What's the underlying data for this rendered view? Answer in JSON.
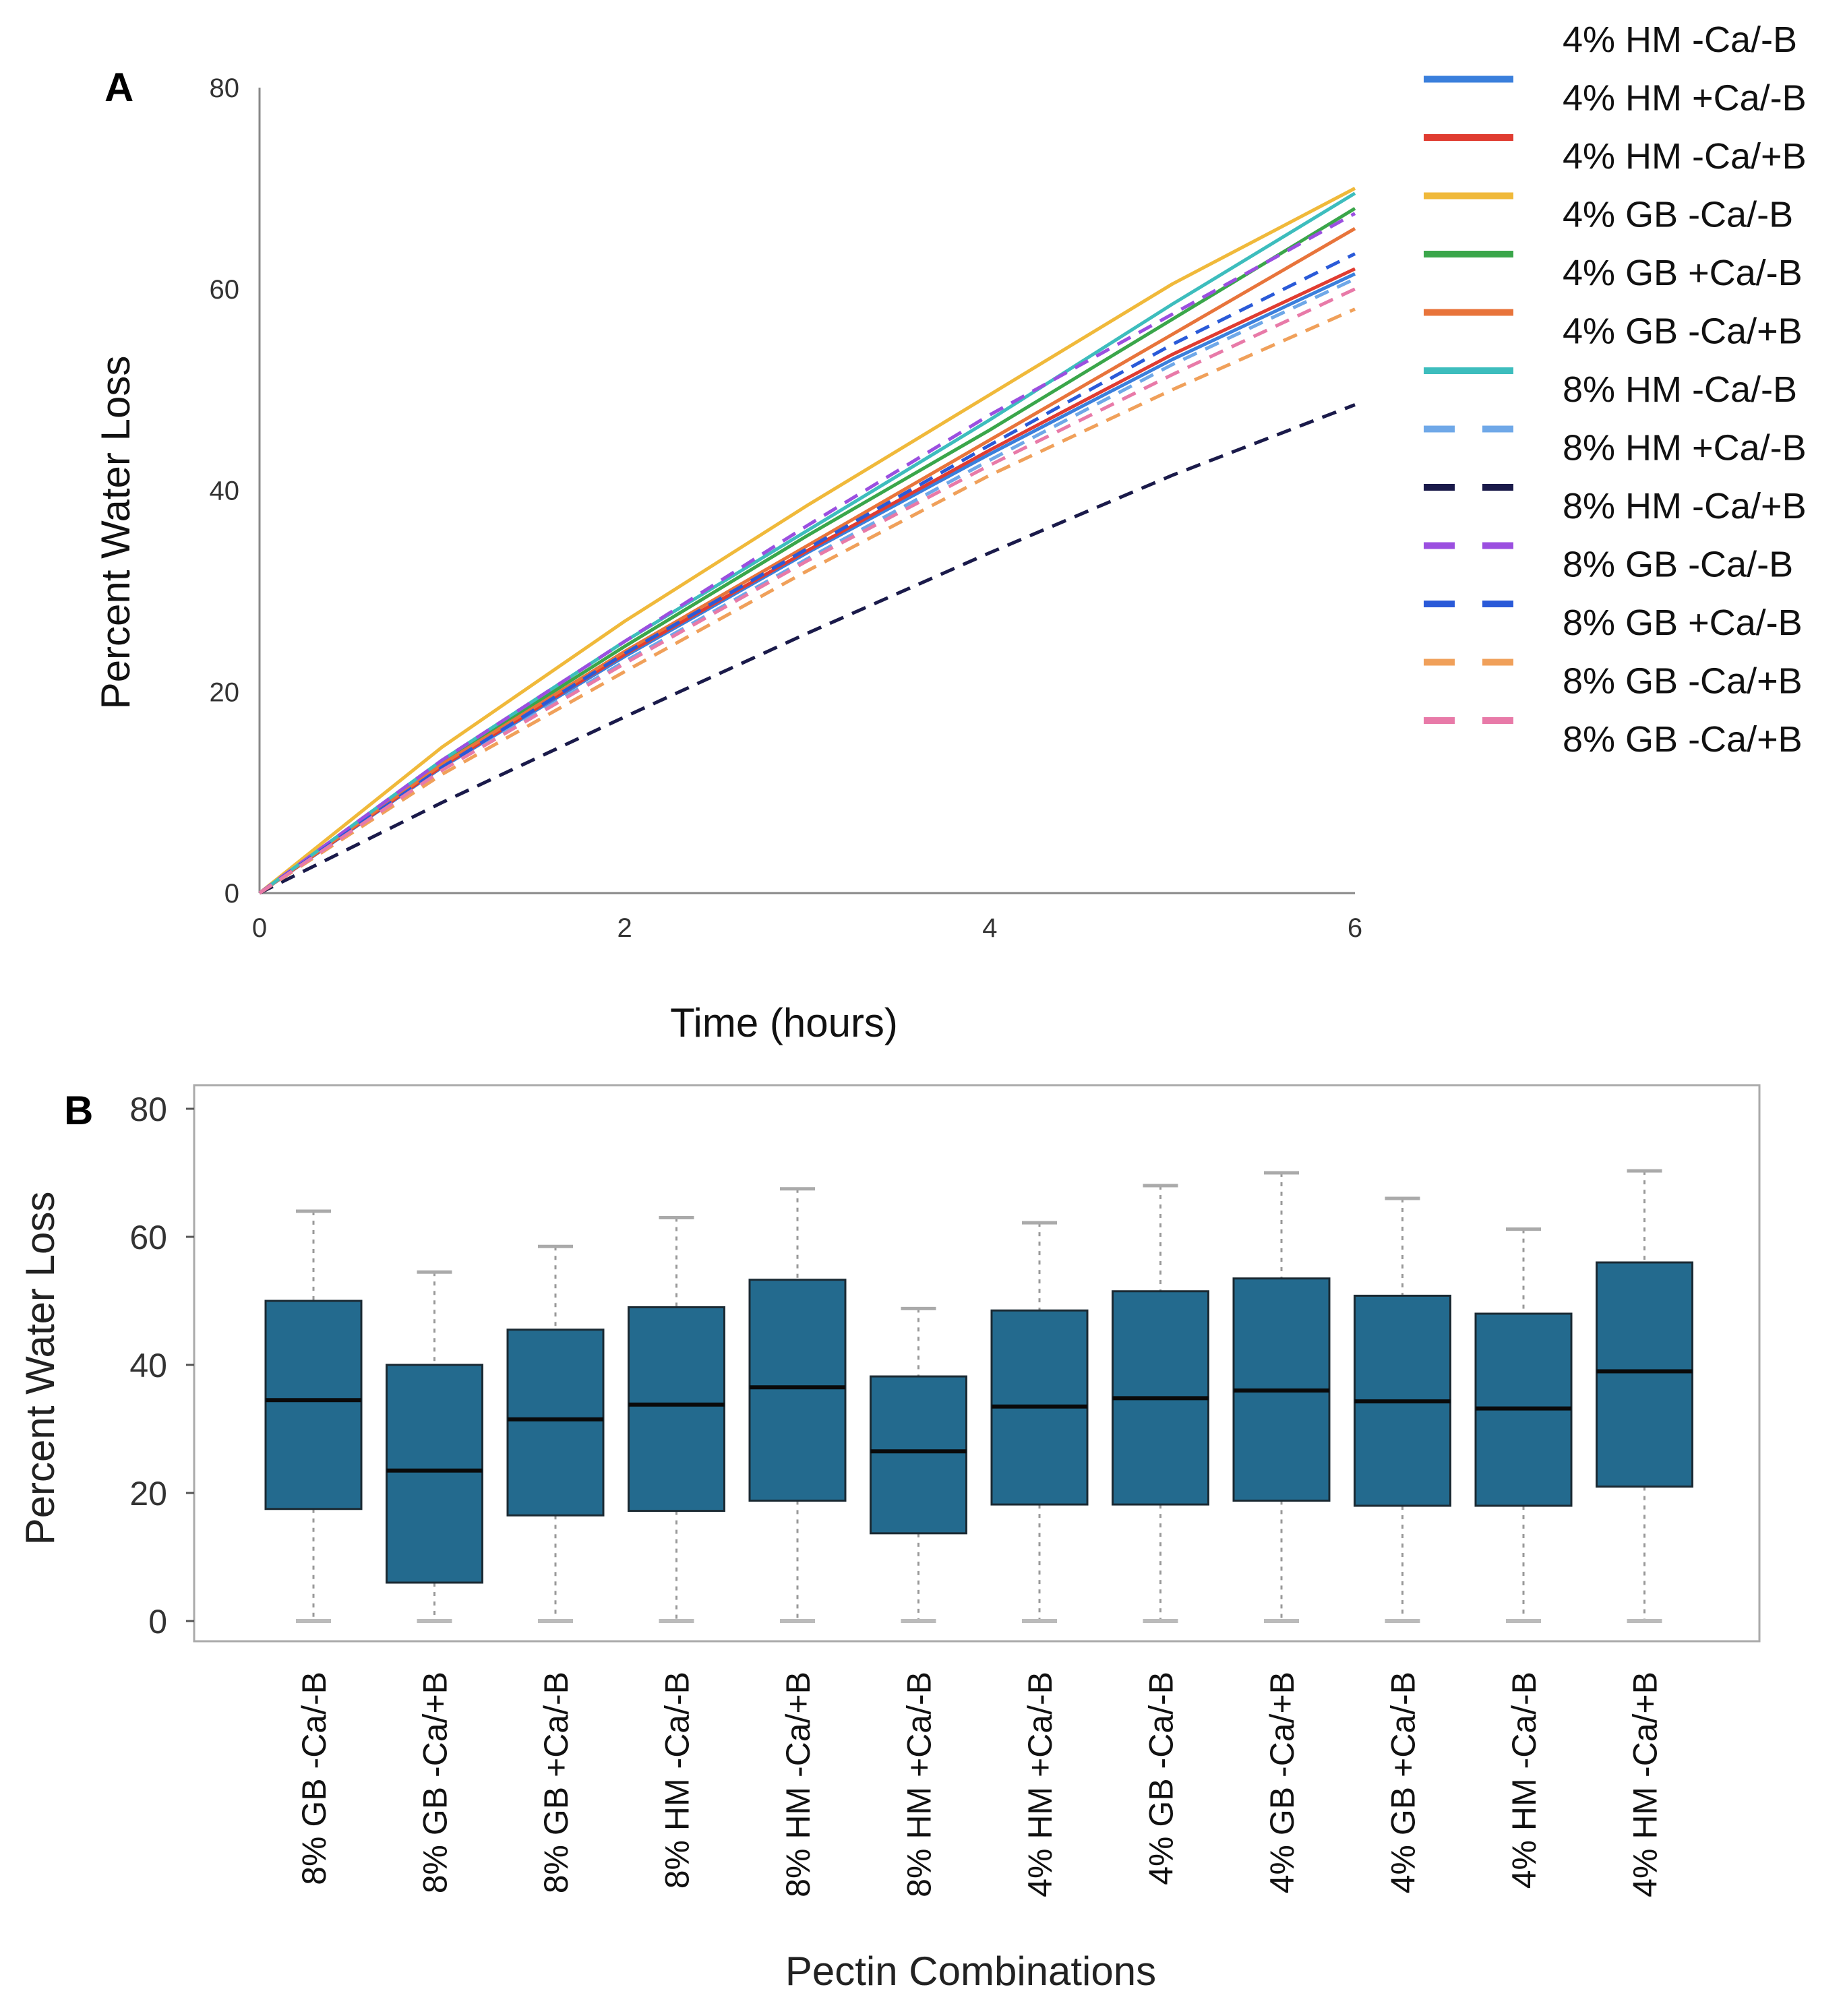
{
  "chart_data": [
    {
      "panel_label": "A",
      "type": "line",
      "title": "",
      "xlabel": "Time (hours)",
      "ylabel": "Percent Water Loss",
      "xlim": [
        0,
        6
      ],
      "ylim": [
        0,
        80
      ],
      "xticks": [
        0,
        2,
        4,
        6
      ],
      "yticks": [
        0,
        20,
        40,
        60,
        80
      ],
      "grid": false,
      "legend_position": "right",
      "x": [
        0,
        1,
        2,
        3,
        4,
        5,
        6
      ],
      "series": [
        {
          "name": "4% HM -Ca/-B",
          "color": "#ffffff",
          "style": "solid",
          "values": [
            0,
            12.5,
            23.5,
            33.8,
            43.6,
            53,
            61.5
          ]
        },
        {
          "name": "4% HM +Ca/-B",
          "color": "#3a7fdc",
          "style": "solid",
          "values": [
            0,
            12.5,
            23.5,
            33.8,
            43.6,
            53,
            61.5
          ]
        },
        {
          "name": "4% HM -Ca/+B",
          "color": "#e03c31",
          "style": "solid",
          "values": [
            0,
            12.6,
            23.7,
            34,
            44,
            53.5,
            62
          ]
        },
        {
          "name": "4% GB -Ca/-B",
          "color": "#f0b93a",
          "style": "solid",
          "values": [
            0,
            14.5,
            27,
            38.5,
            49.5,
            60.5,
            70
          ]
        },
        {
          "name": "4% GB +Ca/-B",
          "color": "#3aa64a",
          "style": "solid",
          "values": [
            0,
            13,
            24.5,
            35.5,
            46,
            57,
            68
          ]
        },
        {
          "name": "4% GB -Ca/+B",
          "color": "#e8743b",
          "style": "solid",
          "values": [
            0,
            12.8,
            24,
            34.5,
            45,
            55.5,
            66
          ]
        },
        {
          "name": "8% HM -Ca/-B",
          "color": "#3dbdbd",
          "style": "solid",
          "values": [
            0,
            13.2,
            25,
            36,
            47,
            58.5,
            69.5
          ]
        },
        {
          "name": "8% HM +Ca/-B",
          "color": "#6fa8e8",
          "style": "dashed",
          "values": [
            0,
            12.3,
            23,
            33.2,
            43,
            52.5,
            61
          ]
        },
        {
          "name": "8% HM -Ca/+B",
          "color": "#1a1a4a",
          "style": "dashed",
          "values": [
            0,
            9,
            17.5,
            25.8,
            33.8,
            41.5,
            48.5
          ]
        },
        {
          "name": "8% GB -Ca/-B",
          "color": "#9b4fe0",
          "style": "dashed",
          "values": [
            0,
            13.2,
            25,
            36.5,
            47.5,
            57.5,
            67.5
          ]
        },
        {
          "name": "8% GB +Ca/-B",
          "color": "#2a5ad8",
          "style": "dashed",
          "values": [
            0,
            12.5,
            23.8,
            34.2,
            44.5,
            54.5,
            63.5
          ]
        },
        {
          "name": "8% GB -Ca/+B",
          "color": "#f0a05a",
          "style": "dashed",
          "values": [
            0,
            11.8,
            22,
            32,
            41.5,
            50,
            58
          ]
        },
        {
          "name": "8% GB -Ca/+B",
          "color": "#e87aa8",
          "style": "dashed",
          "values": [
            0,
            12.2,
            22.8,
            33,
            42.5,
            51.5,
            60
          ]
        }
      ]
    },
    {
      "panel_label": "B",
      "type": "box",
      "title": "",
      "xlabel": "Pectin Combinations",
      "ylabel": "Percent Water Loss",
      "ylim": [
        0,
        80
      ],
      "yticks": [
        0,
        20,
        40,
        60,
        80
      ],
      "grid": false,
      "box_color": "#236a8e",
      "categories": [
        "8% GB -Ca/-B",
        "8% GB -Ca/+B",
        "8% GB +Ca/-B",
        "8% HM -Ca/-B",
        "8% HM -Ca/+B",
        "8% HM +Ca/-B",
        "4% HM +Ca/-B",
        "4% GB -Ca/-B",
        "4% GB -Ca/+B",
        "4% GB +Ca/-B",
        "4% HM -Ca/-B",
        "4% HM -Ca/+B"
      ],
      "boxes": [
        {
          "min": 0,
          "q1": 17.5,
          "median": 34.5,
          "q3": 50,
          "max": 64
        },
        {
          "min": 0,
          "q1": 6,
          "median": 23.5,
          "q3": 40,
          "max": 54.5
        },
        {
          "min": 0,
          "q1": 16.5,
          "median": 31.5,
          "q3": 45.5,
          "max": 58.5
        },
        {
          "min": 0,
          "q1": 17.2,
          "median": 33.8,
          "q3": 49,
          "max": 63
        },
        {
          "min": 0,
          "q1": 18.8,
          "median": 36.5,
          "q3": 53.3,
          "max": 67.5
        },
        {
          "min": 0,
          "q1": 13.7,
          "median": 26.5,
          "q3": 38.2,
          "max": 48.8
        },
        {
          "min": 0,
          "q1": 18.2,
          "median": 33.5,
          "q3": 48.5,
          "max": 62.2
        },
        {
          "min": 0,
          "q1": 18.2,
          "median": 34.8,
          "q3": 51.5,
          "max": 68
        },
        {
          "min": 0,
          "q1": 18.8,
          "median": 36,
          "q3": 53.5,
          "max": 70
        },
        {
          "min": 0,
          "q1": 18,
          "median": 34.3,
          "q3": 50.8,
          "max": 66
        },
        {
          "min": 0,
          "q1": 18,
          "median": 33.2,
          "q3": 48,
          "max": 61.2
        },
        {
          "min": 0,
          "q1": 21,
          "median": 39,
          "q3": 56,
          "max": 70.3
        }
      ]
    }
  ]
}
